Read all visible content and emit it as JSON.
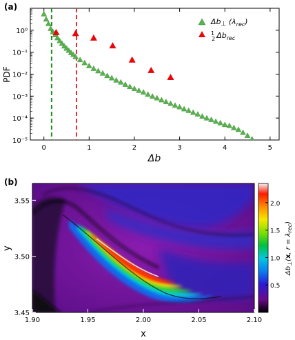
{
  "figure": {
    "panel_a_label": "(a)",
    "panel_b_label": "(b)"
  },
  "chart_data": [
    {
      "type": "scatter",
      "panel": "(a)",
      "xlabel": "Δb",
      "ylabel": "PDF",
      "xlim": [
        -0.3,
        5.2
      ],
      "ylim_log10": [
        -5,
        1
      ],
      "y_scale": "log",
      "x_ticks": [
        "0",
        "1",
        "2",
        "3",
        "4",
        "5"
      ],
      "y_ticks": [
        "10⁻⁵",
        "10⁻⁴",
        "10⁻³",
        "10⁻²",
        "10⁻¹",
        "10⁰"
      ],
      "legend_position": "top-right",
      "series": [
        {
          "name": "Δb⊥(λrec)",
          "marker": "triangle",
          "color": "#59b04f",
          "points": [
            [
              0.0,
              5.5
            ],
            [
              0.05,
              3.2
            ],
            [
              0.1,
              2.0
            ],
            [
              0.15,
              1.2
            ],
            [
              0.2,
              0.85
            ],
            [
              0.25,
              0.62
            ],
            [
              0.3,
              0.45
            ],
            [
              0.35,
              0.33
            ],
            [
              0.4,
              0.25
            ],
            [
              0.45,
              0.19
            ],
            [
              0.5,
              0.15
            ],
            [
              0.55,
              0.12
            ],
            [
              0.6,
              0.095
            ],
            [
              0.65,
              0.078
            ],
            [
              0.7,
              0.062
            ],
            [
              0.8,
              0.045
            ],
            [
              0.9,
              0.033
            ],
            [
              1.0,
              0.024
            ],
            [
              1.1,
              0.018
            ],
            [
              1.2,
              0.014
            ],
            [
              1.3,
              0.011
            ],
            [
              1.4,
              0.0085
            ],
            [
              1.5,
              0.0067
            ],
            [
              1.6,
              0.0053
            ],
            [
              1.7,
              0.0043
            ],
            [
              1.8,
              0.0034
            ],
            [
              1.9,
              0.0027
            ],
            [
              2.0,
              0.0022
            ],
            [
              2.1,
              0.0018
            ],
            [
              2.2,
              0.0015
            ],
            [
              2.3,
              0.0012
            ],
            [
              2.4,
              0.00098
            ],
            [
              2.5,
              0.00082
            ],
            [
              2.6,
              0.00067
            ],
            [
              2.7,
              0.00055
            ],
            [
              2.8,
              0.00046
            ],
            [
              2.9,
              0.00038
            ],
            [
              3.0,
              0.00032
            ],
            [
              3.1,
              0.00026
            ],
            [
              3.2,
              0.00022
            ],
            [
              3.3,
              0.00018
            ],
            [
              3.4,
              0.00015
            ],
            [
              3.5,
              0.00012
            ],
            [
              3.6,
              0.0001
            ],
            [
              3.7,
              8.5e-05
            ],
            [
              3.8,
              7e-05
            ],
            [
              3.9,
              6e-05
            ],
            [
              4.0,
              5e-05
            ],
            [
              4.1,
              4.5e-05
            ],
            [
              4.2,
              3.6e-05
            ],
            [
              4.3,
              3e-05
            ],
            [
              4.4,
              2.2e-05
            ],
            [
              4.5,
              1.6e-05
            ],
            [
              4.6,
              1.1e-05
            ]
          ]
        },
        {
          "name": "½Δb_rec",
          "marker": "triangle",
          "color": "#e8060a",
          "points": [
            [
              0.27,
              0.8
            ],
            [
              0.7,
              0.72
            ],
            [
              1.1,
              0.45
            ],
            [
              1.52,
              0.2
            ],
            [
              1.95,
              0.045
            ],
            [
              2.37,
              0.015
            ],
            [
              2.8,
              0.0072
            ]
          ]
        }
      ],
      "vlines": [
        {
          "x": 0.17,
          "color": "#1f8a1f",
          "style": "dashed"
        },
        {
          "x": 0.72,
          "color": "#e03030",
          "style": "dashed"
        }
      ]
    },
    {
      "type": "heatmap",
      "panel": "(b)",
      "xlabel": "x",
      "ylabel": "y",
      "xlim": [
        1.9,
        2.1
      ],
      "ylim": [
        3.45,
        3.565
      ],
      "x_ticks": [
        "1.90",
        "1.95",
        "2.00",
        "2.05",
        "2.10"
      ],
      "y_ticks": [
        "3.45",
        "3.50",
        "3.55"
      ],
      "colorbar": {
        "label": "Δb⊥(x, r = λrec)",
        "range": [
          0,
          2.35
        ],
        "ticks": [
          "0.5",
          "1.0",
          "1.5",
          "2.0"
        ]
      }
    }
  ]
}
